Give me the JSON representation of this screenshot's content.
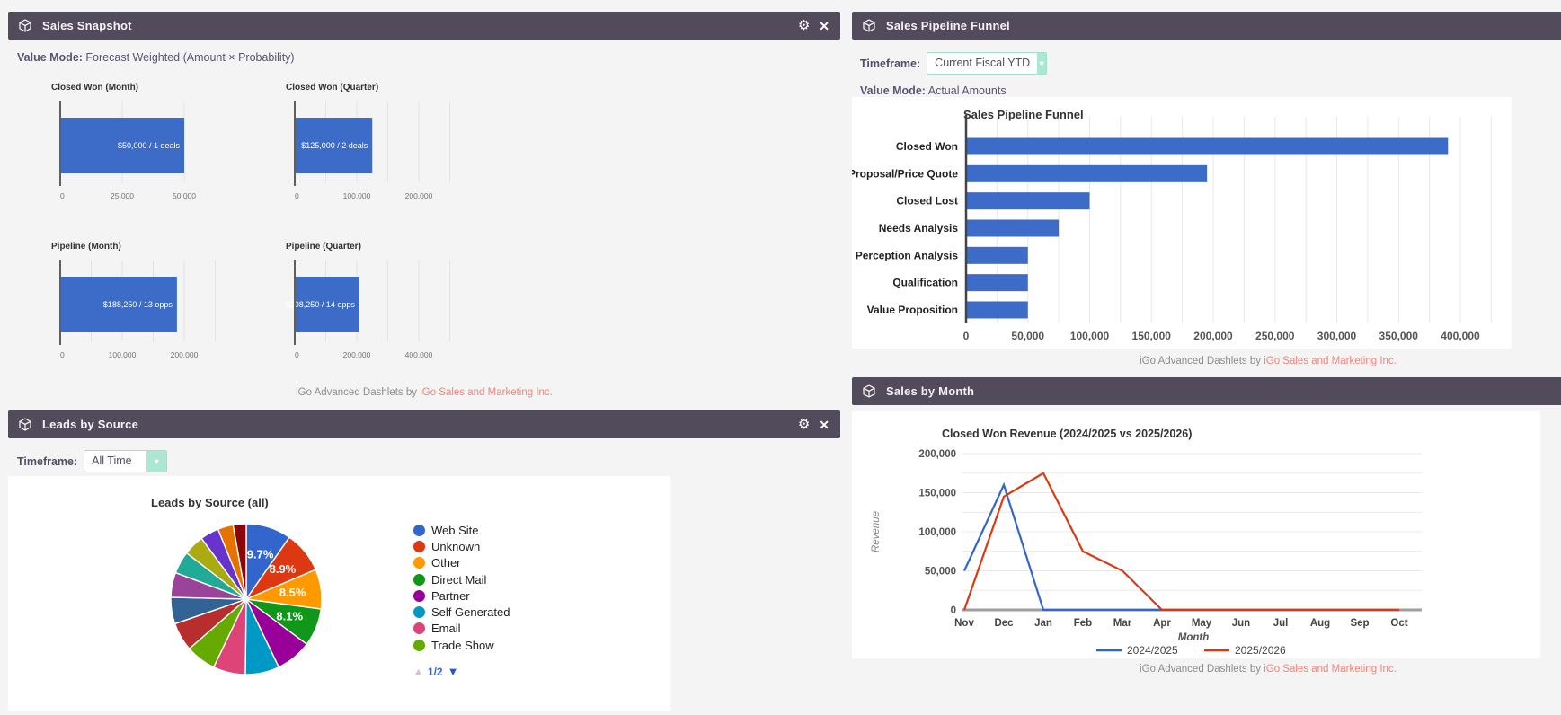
{
  "icons": {
    "gear": "⚙",
    "close": "✕",
    "dropdown": "▼",
    "page_up": "▲",
    "page_down": "▼"
  },
  "branding": {
    "footer_text": "iGo Advanced Dashlets by",
    "footer_link": "iGo Sales and Marketing Inc."
  },
  "theme": {
    "header_bg": "#514b5c",
    "page_bg": "#f4f4f5",
    "bar_blue": "#3d6cc8",
    "line_blue": "#3366cc",
    "line_red": "#dc3912",
    "link_pink": "#f08377",
    "select_mint": "#abe7d2"
  },
  "dashlets": {
    "sales_snapshot": {
      "title": "Sales Snapshot",
      "value_mode_label": "Value Mode:",
      "value_mode": "Forecast Weighted (Amount × Probability)",
      "mini_charts": [
        {
          "title": "Closed Won (Month)",
          "bar_label": "$50,000 / 1 deals",
          "value": 50000,
          "max_tick": 50000,
          "ticks": [
            {
              "v": 0,
              "label": "0"
            },
            {
              "v": 25000,
              "label": "25,000"
            },
            {
              "v": 50000,
              "label": "50,000"
            }
          ],
          "grid_step": 25000
        },
        {
          "title": "Closed Won (Quarter)",
          "bar_label": "$125,000 / 2 deals",
          "value": 125000,
          "max_tick": 200000,
          "ticks": [
            {
              "v": 0,
              "label": "0"
            },
            {
              "v": 100000,
              "label": "100,000"
            },
            {
              "v": 200000,
              "label": "200,000"
            }
          ],
          "grid_step": 50000
        },
        {
          "title": "Pipeline (Month)",
          "bar_label": "$188,250 / 13 opps",
          "value": 188250,
          "max_tick": 200000,
          "ticks": [
            {
              "v": 0,
              "label": "0"
            },
            {
              "v": 100000,
              "label": "100,000"
            },
            {
              "v": 200000,
              "label": "200,000"
            }
          ],
          "grid_step": 50000
        },
        {
          "title": "Pipeline (Quarter)",
          "bar_label": "$208,250 / 14 opps",
          "value": 208250,
          "max_tick": 400000,
          "ticks": [
            {
              "v": 0,
              "label": "0"
            },
            {
              "v": 200000,
              "label": "200,000"
            },
            {
              "v": 400000,
              "label": "400,000"
            }
          ],
          "grid_step": 100000
        }
      ]
    },
    "leads_by_source": {
      "title": "Leads by Source",
      "timeframe_label": "Timeframe:",
      "timeframe_value": "All Time",
      "chart": {
        "type": "pie",
        "title": "Leads by Source (all)",
        "slices": [
          {
            "pct": 9.7,
            "label": "9.7%",
            "color": "#3366cc",
            "name": "Web Site"
          },
          {
            "pct": 8.9,
            "label": "8.9%",
            "color": "#dc3912",
            "name": "Unknown"
          },
          {
            "pct": 8.5,
            "label": "8.5%",
            "color": "#ff9900",
            "name": "Other"
          },
          {
            "pct": 8.1,
            "label": "8.1%",
            "color": "#109618",
            "name": "Direct Mail"
          },
          {
            "pct": 7.7,
            "color": "#990099",
            "name": "Partner"
          },
          {
            "pct": 7.3,
            "color": "#0099c6",
            "name": "Self Generated"
          },
          {
            "pct": 6.9,
            "color": "#dd4477",
            "name": "Email"
          },
          {
            "pct": 6.5,
            "color": "#66aa00",
            "name": "Trade Show"
          },
          {
            "pct": 6.1,
            "color": "#b82e2e"
          },
          {
            "pct": 5.7,
            "color": "#316395"
          },
          {
            "pct": 5.3,
            "color": "#994499"
          },
          {
            "pct": 4.8,
            "color": "#22aa99"
          },
          {
            "pct": 4.4,
            "color": "#aaaa11"
          },
          {
            "pct": 4.0,
            "color": "#6633cc"
          },
          {
            "pct": 3.3,
            "color": "#e67300"
          },
          {
            "pct": 2.8,
            "color": "#8b0707"
          }
        ],
        "legend": [
          {
            "label": "Web Site",
            "color": "#3366cc"
          },
          {
            "label": "Unknown",
            "color": "#dc3912"
          },
          {
            "label": "Other",
            "color": "#ff9900"
          },
          {
            "label": "Direct Mail",
            "color": "#109618"
          },
          {
            "label": "Partner",
            "color": "#990099"
          },
          {
            "label": "Self Generated",
            "color": "#0099c6"
          },
          {
            "label": "Email",
            "color": "#dd4477"
          },
          {
            "label": "Trade Show",
            "color": "#66aa00"
          }
        ],
        "pagination": {
          "page": "1/2"
        }
      }
    },
    "pipeline_funnel": {
      "title": "Sales Pipeline Funnel",
      "timeframe_label": "Timeframe:",
      "timeframe_value": "Current Fiscal YTD",
      "value_mode_label": "Value Mode:",
      "value_mode": "Actual Amounts",
      "chart": {
        "type": "bar",
        "title": "Sales Pipeline Funnel",
        "categories": [
          "Closed Won",
          "Proposal/Price Quote",
          "Closed Lost",
          "Needs Analysis",
          "Perception Analysis",
          "Qualification",
          "Value Proposition"
        ],
        "values": [
          390000,
          195000,
          100000,
          75000,
          50000,
          50000,
          50000
        ],
        "xticks": [
          {
            "v": 0,
            "label": "0"
          },
          {
            "v": 50000,
            "label": "50,000"
          },
          {
            "v": 100000,
            "label": "100,000"
          },
          {
            "v": 150000,
            "label": "150,000"
          },
          {
            "v": 200000,
            "label": "200,000"
          },
          {
            "v": 250000,
            "label": "250,000"
          },
          {
            "v": 300000,
            "label": "300,000"
          },
          {
            "v": 350000,
            "label": "350,000"
          },
          {
            "v": 400000,
            "label": "400,000"
          }
        ],
        "xlim": [
          0,
          400000
        ],
        "grid_step": 25000,
        "bar_color": "#3d6cc8"
      }
    },
    "sales_by_month": {
      "title": "Sales by Month",
      "chart": {
        "type": "line",
        "title": "Closed Won Revenue (2024/2025 vs 2025/2026)",
        "xlabel": "Month",
        "ylabel": "Revenue",
        "months": [
          "Nov",
          "Dec",
          "Jan",
          "Feb",
          "Mar",
          "Apr",
          "May",
          "Jun",
          "Jul",
          "Aug",
          "Sep",
          "Oct"
        ],
        "yticks": [
          {
            "v": 0,
            "label": "0"
          },
          {
            "v": 50000,
            "label": "50,000"
          },
          {
            "v": 100000,
            "label": "100,000"
          },
          {
            "v": 150000,
            "label": "150,000"
          },
          {
            "v": 200000,
            "label": "200,000"
          }
        ],
        "ylim": [
          0,
          200000
        ],
        "grid_step": 25000,
        "series": [
          {
            "name": "2024/2025",
            "color": "#3366cc",
            "values": [
              50000,
              160000,
              0,
              0,
              0,
              0,
              0,
              0,
              0,
              0,
              0,
              0
            ]
          },
          {
            "name": "2025/2026",
            "color": "#dc3912",
            "values": [
              0,
              145000,
              175000,
              75000,
              50000,
              0,
              0,
              0,
              0,
              0,
              0,
              0
            ]
          }
        ]
      }
    }
  }
}
